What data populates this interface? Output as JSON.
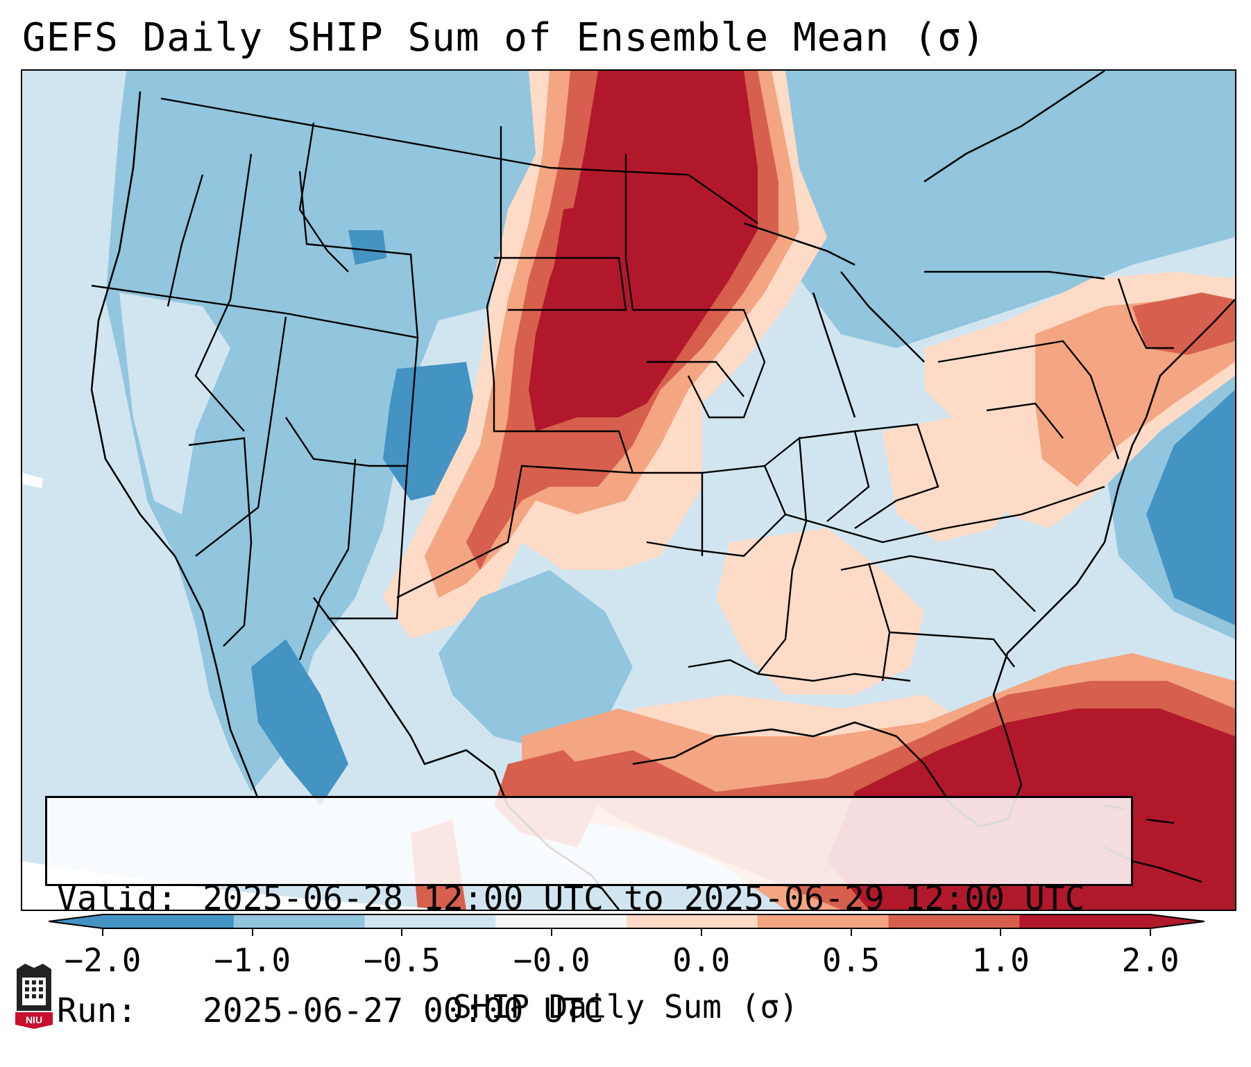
{
  "title": "GEFS Daily SHIP Sum of Ensemble Mean (σ)",
  "info": {
    "valid_label": "Valid:",
    "valid_value": "2025-06-28 12:00 UTC to 2025-06-29 12:00 UTC",
    "run_label": "Run:",
    "run_value": "2025-06-27 00:00 UTC"
  },
  "colorbar": {
    "title": "SHIP Daily Sum (σ)",
    "ticks": [
      "−2.0",
      "−1.0",
      "−0.5",
      "−0.0",
      "0.0",
      "0.5",
      "1.0",
      "2.0"
    ],
    "colors": [
      "#4393c3",
      "#92c5de",
      "#d1e5f0",
      "#f7f7f7",
      "#fddbc7",
      "#f4a582",
      "#d6604d",
      "#b2182b"
    ]
  },
  "logo": {
    "text": "NIU",
    "icon": "niu-university-logo"
  },
  "map": {
    "ocean_color": "#d1e5f0",
    "regions": [
      {
        "name": "high-plains-upper-midwest",
        "category": "≥ 2.0"
      },
      {
        "name": "southeast-atlantic-gulf",
        "category": "≥ 2.0"
      },
      {
        "name": "intermountain-west",
        "category": "-1.0 to -0.5"
      },
      {
        "name": "central-rockies",
        "category": "-2.0 to -1.0"
      },
      {
        "name": "western-atlantic",
        "category": "-2.0 to -1.0"
      },
      {
        "name": "northeast",
        "category": "0.5 to 1.0"
      },
      {
        "name": "southern-plains",
        "category": "1.0 to 2.0"
      }
    ]
  }
}
